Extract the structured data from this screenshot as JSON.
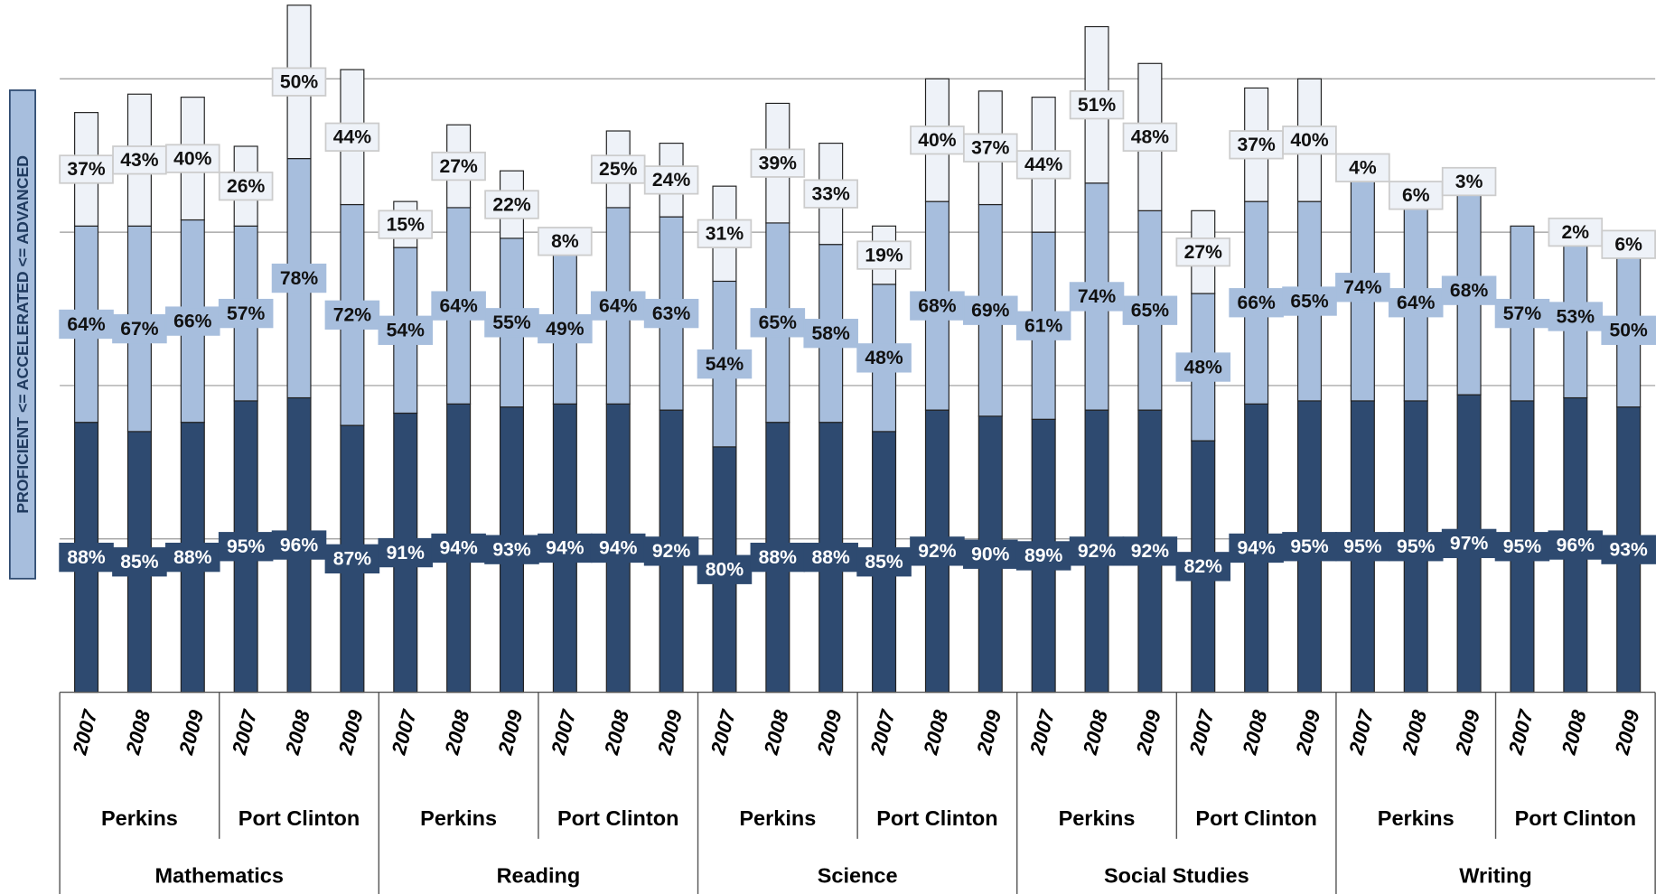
{
  "chart_data": {
    "type": "stacked_bar",
    "y_label": "PROFICIENT <= ACCELERATED <= ADVANCED",
    "categories": [
      "2007",
      "2008",
      "2009",
      "2007",
      "2008",
      "2009",
      "2007",
      "2008",
      "2009",
      "2007",
      "2008",
      "2009",
      "2007",
      "2008",
      "2009",
      "2007",
      "2008",
      "2009",
      "2007",
      "2008",
      "2009",
      "2007",
      "2008",
      "2009",
      "2007",
      "2008",
      "2009",
      "2007",
      "2008",
      "2009"
    ],
    "schools": [
      "Perkins",
      "Port Clinton",
      "Perkins",
      "Port Clinton",
      "Perkins",
      "Port Clinton",
      "Perkins",
      "Port Clinton",
      "Perkins",
      "Port Clinton"
    ],
    "subjects": [
      "Mathematics",
      "Reading",
      "Science",
      "Social Studies",
      "Writing"
    ],
    "ylim": [
      0,
      225
    ],
    "yticks": [
      50,
      100,
      150,
      200
    ],
    "grid": true,
    "series": [
      {
        "color": "#2e4a70",
        "values": [
          88,
          85,
          88,
          95,
          96,
          87,
          91,
          94,
          93,
          94,
          94,
          92,
          80,
          88,
          88,
          85,
          92,
          90,
          89,
          92,
          92,
          82,
          94,
          95,
          95,
          95,
          97,
          95,
          96,
          93
        ],
        "value_labels": [
          "88%",
          "85%",
          "88%",
          "95%",
          "96%",
          "87%",
          "91%",
          "94%",
          "93%",
          "94%",
          "94%",
          "92%",
          "80%",
          "88%",
          "88%",
          "85%",
          "92%",
          "90%",
          "89%",
          "92%",
          "92%",
          "82%",
          "94%",
          "95%",
          "95%",
          "95%",
          "97%",
          "95%",
          "96%",
          "93%"
        ]
      },
      {
        "color": "#a7bedd",
        "values": [
          64,
          67,
          66,
          57,
          78,
          72,
          54,
          64,
          55,
          49,
          64,
          63,
          54,
          65,
          58,
          48,
          68,
          69,
          61,
          74,
          65,
          48,
          66,
          65,
          74,
          64,
          68,
          57,
          53,
          50
        ],
        "value_labels": [
          "64%",
          "67%",
          "66%",
          "57%",
          "78%",
          "72%",
          "54%",
          "64%",
          "55%",
          "49%",
          "64%",
          "63%",
          "54%",
          "65%",
          "58%",
          "48%",
          "68%",
          "69%",
          "61%",
          "74%",
          "65%",
          "48%",
          "66%",
          "65%",
          "74%",
          "64%",
          "68%",
          "57%",
          "53%",
          "50%"
        ]
      },
      {
        "color": "#eef2f8",
        "values": [
          37,
          43,
          40,
          26,
          50,
          44,
          15,
          27,
          22,
          8,
          25,
          24,
          31,
          39,
          33,
          19,
          40,
          37,
          44,
          51,
          48,
          27,
          37,
          40,
          4,
          6,
          3,
          null,
          2,
          6
        ],
        "value_labels": [
          "37%",
          "43%",
          "40%",
          "26%",
          "50%",
          "44%",
          "15%",
          "27%",
          "22%",
          "8%",
          "25%",
          "24%",
          "31%",
          "39%",
          "33%",
          "19%",
          "40%",
          "37%",
          "44%",
          "51%",
          "48%",
          "27%",
          "37%",
          "40%",
          "4%",
          "6%",
          "3%",
          null,
          "2%",
          "6%"
        ]
      }
    ]
  }
}
